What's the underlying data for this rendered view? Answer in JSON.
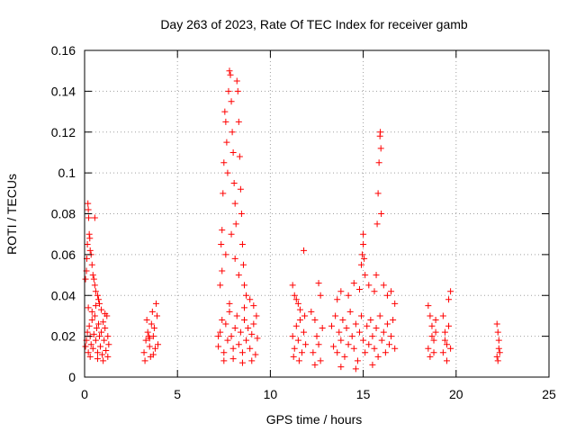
{
  "chart_data": {
    "type": "scatter",
    "title": "Day 263 of 2023, Rate Of TEC Index for receiver gamb",
    "xlabel": "GPS time / hours",
    "ylabel": "ROTI / TECUs",
    "xlim": [
      0,
      25
    ],
    "ylim": [
      0,
      0.16
    ],
    "x_ticks": [
      0,
      5,
      10,
      15,
      20,
      25
    ],
    "x_tick_labels": [
      "0",
      "5",
      "10",
      "15",
      "20",
      "25"
    ],
    "y_ticks": [
      0,
      0.02,
      0.04,
      0.06,
      0.08,
      0.1,
      0.12,
      0.14,
      0.16
    ],
    "y_tick_labels": [
      "0",
      "0.02",
      "0.04",
      "0.06",
      "0.08",
      "0.1",
      "0.12",
      "0.14",
      "0.16"
    ],
    "grid": true,
    "marker": "+",
    "color": "#ff0000",
    "series": [
      {
        "points": [
          [
            0.05,
            0.048
          ],
          [
            0.1,
            0.052
          ],
          [
            0.12,
            0.058
          ],
          [
            0.15,
            0.065
          ],
          [
            0.18,
            0.085
          ],
          [
            0.2,
            0.082
          ],
          [
            0.22,
            0.078
          ],
          [
            0.25,
            0.07
          ],
          [
            0.28,
            0.068
          ],
          [
            0.3,
            0.062
          ],
          [
            0.35,
            0.06
          ],
          [
            0.4,
            0.055
          ],
          [
            0.45,
            0.05
          ],
          [
            0.5,
            0.048
          ],
          [
            0.55,
            0.045
          ],
          [
            0.6,
            0.042
          ],
          [
            0.55,
            0.078
          ],
          [
            0.7,
            0.04
          ],
          [
            0.75,
            0.038
          ],
          [
            0.8,
            0.036
          ],
          [
            0.05,
            0.015
          ],
          [
            0.1,
            0.018
          ],
          [
            0.15,
            0.022
          ],
          [
            0.2,
            0.012
          ],
          [
            0.25,
            0.025
          ],
          [
            0.3,
            0.02
          ],
          [
            0.35,
            0.016
          ],
          [
            0.4,
            0.028
          ],
          [
            0.45,
            0.014
          ],
          [
            0.5,
            0.021
          ],
          [
            0.55,
            0.03
          ],
          [
            0.6,
            0.018
          ],
          [
            0.65,
            0.024
          ],
          [
            0.7,
            0.012
          ],
          [
            0.75,
            0.026
          ],
          [
            0.8,
            0.02
          ],
          [
            0.85,
            0.015
          ],
          [
            0.9,
            0.022
          ],
          [
            0.95,
            0.011
          ],
          [
            1.0,
            0.027
          ],
          [
            1.05,
            0.018
          ],
          [
            1.1,
            0.024
          ],
          [
            1.15,
            0.013
          ],
          [
            1.2,
            0.03
          ],
          [
            1.25,
            0.02
          ],
          [
            1.3,
            0.016
          ],
          [
            0.2,
            0.034
          ],
          [
            0.4,
            0.032
          ],
          [
            0.6,
            0.035
          ],
          [
            0.9,
            0.033
          ],
          [
            1.1,
            0.031
          ],
          [
            0.3,
            0.01
          ],
          [
            0.7,
            0.009
          ],
          [
            1.0,
            0.008
          ],
          [
            1.25,
            0.01
          ],
          [
            3.2,
            0.012
          ],
          [
            3.3,
            0.018
          ],
          [
            3.4,
            0.022
          ],
          [
            3.5,
            0.015
          ],
          [
            3.6,
            0.026
          ],
          [
            3.7,
            0.02
          ],
          [
            3.8,
            0.014
          ],
          [
            3.9,
            0.03
          ],
          [
            3.35,
            0.028
          ],
          [
            3.55,
            0.01
          ],
          [
            3.75,
            0.024
          ],
          [
            3.85,
            0.036
          ],
          [
            3.65,
            0.032
          ],
          [
            3.45,
            0.02
          ],
          [
            3.25,
            0.008
          ],
          [
            3.95,
            0.016
          ],
          [
            3.7,
            0.011
          ],
          [
            3.5,
            0.019
          ],
          [
            7.2,
            0.02
          ],
          [
            7.3,
            0.045
          ],
          [
            7.35,
            0.065
          ],
          [
            7.4,
            0.072
          ],
          [
            7.45,
            0.09
          ],
          [
            7.5,
            0.105
          ],
          [
            7.55,
            0.13
          ],
          [
            7.6,
            0.125
          ],
          [
            7.65,
            0.115
          ],
          [
            7.7,
            0.1
          ],
          [
            7.75,
            0.14
          ],
          [
            7.8,
            0.15
          ],
          [
            7.85,
            0.148
          ],
          [
            7.9,
            0.135
          ],
          [
            7.95,
            0.12
          ],
          [
            8.0,
            0.11
          ],
          [
            8.05,
            0.095
          ],
          [
            8.1,
            0.085
          ],
          [
            8.15,
            0.075
          ],
          [
            8.2,
            0.145
          ],
          [
            8.25,
            0.14
          ],
          [
            8.3,
            0.125
          ],
          [
            8.35,
            0.108
          ],
          [
            8.4,
            0.092
          ],
          [
            8.45,
            0.08
          ],
          [
            8.5,
            0.065
          ],
          [
            8.55,
            0.055
          ],
          [
            8.6,
            0.045
          ],
          [
            8.7,
            0.04
          ],
          [
            8.9,
            0.038
          ],
          [
            9.1,
            0.035
          ],
          [
            7.6,
            0.06
          ],
          [
            7.9,
            0.07
          ],
          [
            8.1,
            0.058
          ],
          [
            7.4,
            0.052
          ],
          [
            8.3,
            0.05
          ],
          [
            7.2,
            0.015
          ],
          [
            7.3,
            0.022
          ],
          [
            7.4,
            0.028
          ],
          [
            7.5,
            0.012
          ],
          [
            7.6,
            0.026
          ],
          [
            7.7,
            0.018
          ],
          [
            7.8,
            0.032
          ],
          [
            7.9,
            0.02
          ],
          [
            8.0,
            0.014
          ],
          [
            8.1,
            0.024
          ],
          [
            8.2,
            0.03
          ],
          [
            8.3,
            0.016
          ],
          [
            8.4,
            0.022
          ],
          [
            8.5,
            0.012
          ],
          [
            8.6,
            0.028
          ],
          [
            8.7,
            0.018
          ],
          [
            8.8,
            0.024
          ],
          [
            8.9,
            0.014
          ],
          [
            9.0,
            0.021
          ],
          [
            9.1,
            0.026
          ],
          [
            9.2,
            0.011
          ],
          [
            9.3,
            0.019
          ],
          [
            7.5,
            0.008
          ],
          [
            8.0,
            0.009
          ],
          [
            8.5,
            0.007
          ],
          [
            9.0,
            0.008
          ],
          [
            7.8,
            0.036
          ],
          [
            8.6,
            0.034
          ],
          [
            9.25,
            0.03
          ],
          [
            11.2,
            0.045
          ],
          [
            11.3,
            0.04
          ],
          [
            11.4,
            0.038
          ],
          [
            11.5,
            0.036
          ],
          [
            11.6,
            0.033
          ],
          [
            11.8,
            0.062
          ],
          [
            11.2,
            0.02
          ],
          [
            11.3,
            0.014
          ],
          [
            11.4,
            0.025
          ],
          [
            11.5,
            0.018
          ],
          [
            11.6,
            0.028
          ],
          [
            11.7,
            0.012
          ],
          [
            11.8,
            0.022
          ],
          [
            11.9,
            0.016
          ],
          [
            11.25,
            0.01
          ],
          [
            11.55,
            0.008
          ],
          [
            11.85,
            0.03
          ],
          [
            12.2,
            0.032
          ],
          [
            12.4,
            0.028
          ],
          [
            12.6,
            0.046
          ],
          [
            12.7,
            0.04
          ],
          [
            12.3,
            0.012
          ],
          [
            12.5,
            0.02
          ],
          [
            12.6,
            0.016
          ],
          [
            12.7,
            0.008
          ],
          [
            12.8,
            0.024
          ],
          [
            12.4,
            0.006
          ],
          [
            13.3,
            0.025
          ],
          [
            13.4,
            0.015
          ],
          [
            13.5,
            0.03
          ],
          [
            13.6,
            0.012
          ],
          [
            13.7,
            0.022
          ],
          [
            13.8,
            0.018
          ],
          [
            13.9,
            0.028
          ],
          [
            14.0,
            0.01
          ],
          [
            14.1,
            0.024
          ],
          [
            14.2,
            0.016
          ],
          [
            14.3,
            0.032
          ],
          [
            14.4,
            0.02
          ],
          [
            14.5,
            0.014
          ],
          [
            14.6,
            0.026
          ],
          [
            14.7,
            0.008
          ],
          [
            14.8,
            0.022
          ],
          [
            14.9,
            0.03
          ],
          [
            15.0,
            0.018
          ],
          [
            15.1,
            0.012
          ],
          [
            15.2,
            0.025
          ],
          [
            15.3,
            0.016
          ],
          [
            15.4,
            0.028
          ],
          [
            15.5,
            0.02
          ],
          [
            15.6,
            0.014
          ],
          [
            15.7,
            0.024
          ],
          [
            15.8,
            0.01
          ],
          [
            15.9,
            0.03
          ],
          [
            16.0,
            0.018
          ],
          [
            16.1,
            0.022
          ],
          [
            16.2,
            0.012
          ],
          [
            16.3,
            0.026
          ],
          [
            16.4,
            0.016
          ],
          [
            16.5,
            0.02
          ],
          [
            16.6,
            0.028
          ],
          [
            16.7,
            0.014
          ],
          [
            13.6,
            0.038
          ],
          [
            13.8,
            0.042
          ],
          [
            14.2,
            0.04
          ],
          [
            14.5,
            0.046
          ],
          [
            14.8,
            0.043
          ],
          [
            14.9,
            0.055
          ],
          [
            14.95,
            0.06
          ],
          [
            15.0,
            0.065
          ],
          [
            15.0,
            0.07
          ],
          [
            15.05,
            0.058
          ],
          [
            15.1,
            0.05
          ],
          [
            15.3,
            0.045
          ],
          [
            15.6,
            0.042
          ],
          [
            15.7,
            0.05
          ],
          [
            15.75,
            0.075
          ],
          [
            15.8,
            0.09
          ],
          [
            15.85,
            0.105
          ],
          [
            15.9,
            0.118
          ],
          [
            15.92,
            0.12
          ],
          [
            15.95,
            0.112
          ],
          [
            15.97,
            0.08
          ],
          [
            16.1,
            0.045
          ],
          [
            16.3,
            0.04
          ],
          [
            16.5,
            0.042
          ],
          [
            16.7,
            0.036
          ],
          [
            13.8,
            0.005
          ],
          [
            14.6,
            0.004
          ],
          [
            15.5,
            0.006
          ],
          [
            18.5,
            0.035
          ],
          [
            18.6,
            0.03
          ],
          [
            18.7,
            0.025
          ],
          [
            18.8,
            0.018
          ],
          [
            18.9,
            0.022
          ],
          [
            18.5,
            0.014
          ],
          [
            18.6,
            0.01
          ],
          [
            18.7,
            0.02
          ],
          [
            18.8,
            0.012
          ],
          [
            18.9,
            0.028
          ],
          [
            19.3,
            0.03
          ],
          [
            19.4,
            0.022
          ],
          [
            19.5,
            0.016
          ],
          [
            19.6,
            0.038
          ],
          [
            19.7,
            0.042
          ],
          [
            19.3,
            0.012
          ],
          [
            19.4,
            0.018
          ],
          [
            19.5,
            0.008
          ],
          [
            19.6,
            0.025
          ],
          [
            19.7,
            0.014
          ],
          [
            22.2,
            0.026
          ],
          [
            22.25,
            0.022
          ],
          [
            22.3,
            0.018
          ],
          [
            22.35,
            0.012
          ],
          [
            22.2,
            0.01
          ],
          [
            22.3,
            0.014
          ],
          [
            22.25,
            0.008
          ]
        ]
      }
    ]
  }
}
